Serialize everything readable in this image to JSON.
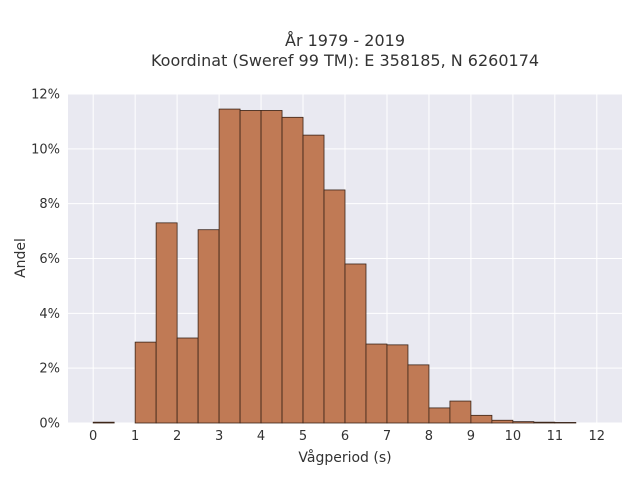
{
  "chart_data": {
    "type": "bar",
    "title_line1": "År 1979 - 2019",
    "title_line2": "Koordinat (Sweref 99 TM): E 358185, N 6260174",
    "xlabel": "Vågperiod (s)",
    "ylabel": "Andel",
    "xlim": [
      -0.6,
      12.6
    ],
    "ylim": [
      0,
      12
    ],
    "xticks": [
      0,
      1,
      2,
      3,
      4,
      5,
      6,
      7,
      8,
      9,
      10,
      11,
      12
    ],
    "yticks": [
      0,
      2,
      4,
      6,
      8,
      10,
      12
    ],
    "ytick_labels": [
      "0%",
      "2%",
      "4%",
      "6%",
      "8%",
      "10%",
      "12%"
    ],
    "bin_width": 0.5,
    "bin_starts": [
      0,
      0.5,
      1,
      1.5,
      2,
      2.5,
      3,
      3.5,
      4,
      4.5,
      5,
      5.5,
      6,
      6.5,
      7,
      7.5,
      8,
      8.5,
      9,
      9.5,
      10,
      10.5,
      11,
      11.5
    ],
    "values": [
      0.03,
      0.0,
      2.95,
      7.3,
      3.1,
      7.05,
      11.45,
      11.4,
      11.4,
      11.15,
      10.5,
      8.5,
      5.8,
      2.88,
      2.85,
      2.12,
      0.55,
      0.8,
      0.28,
      0.1,
      0.05,
      0.03,
      0.02,
      0.0
    ],
    "bar_color": "#c07a55",
    "edge_color": "#3a2418",
    "grid": true,
    "background": "#e9e9f1"
  }
}
